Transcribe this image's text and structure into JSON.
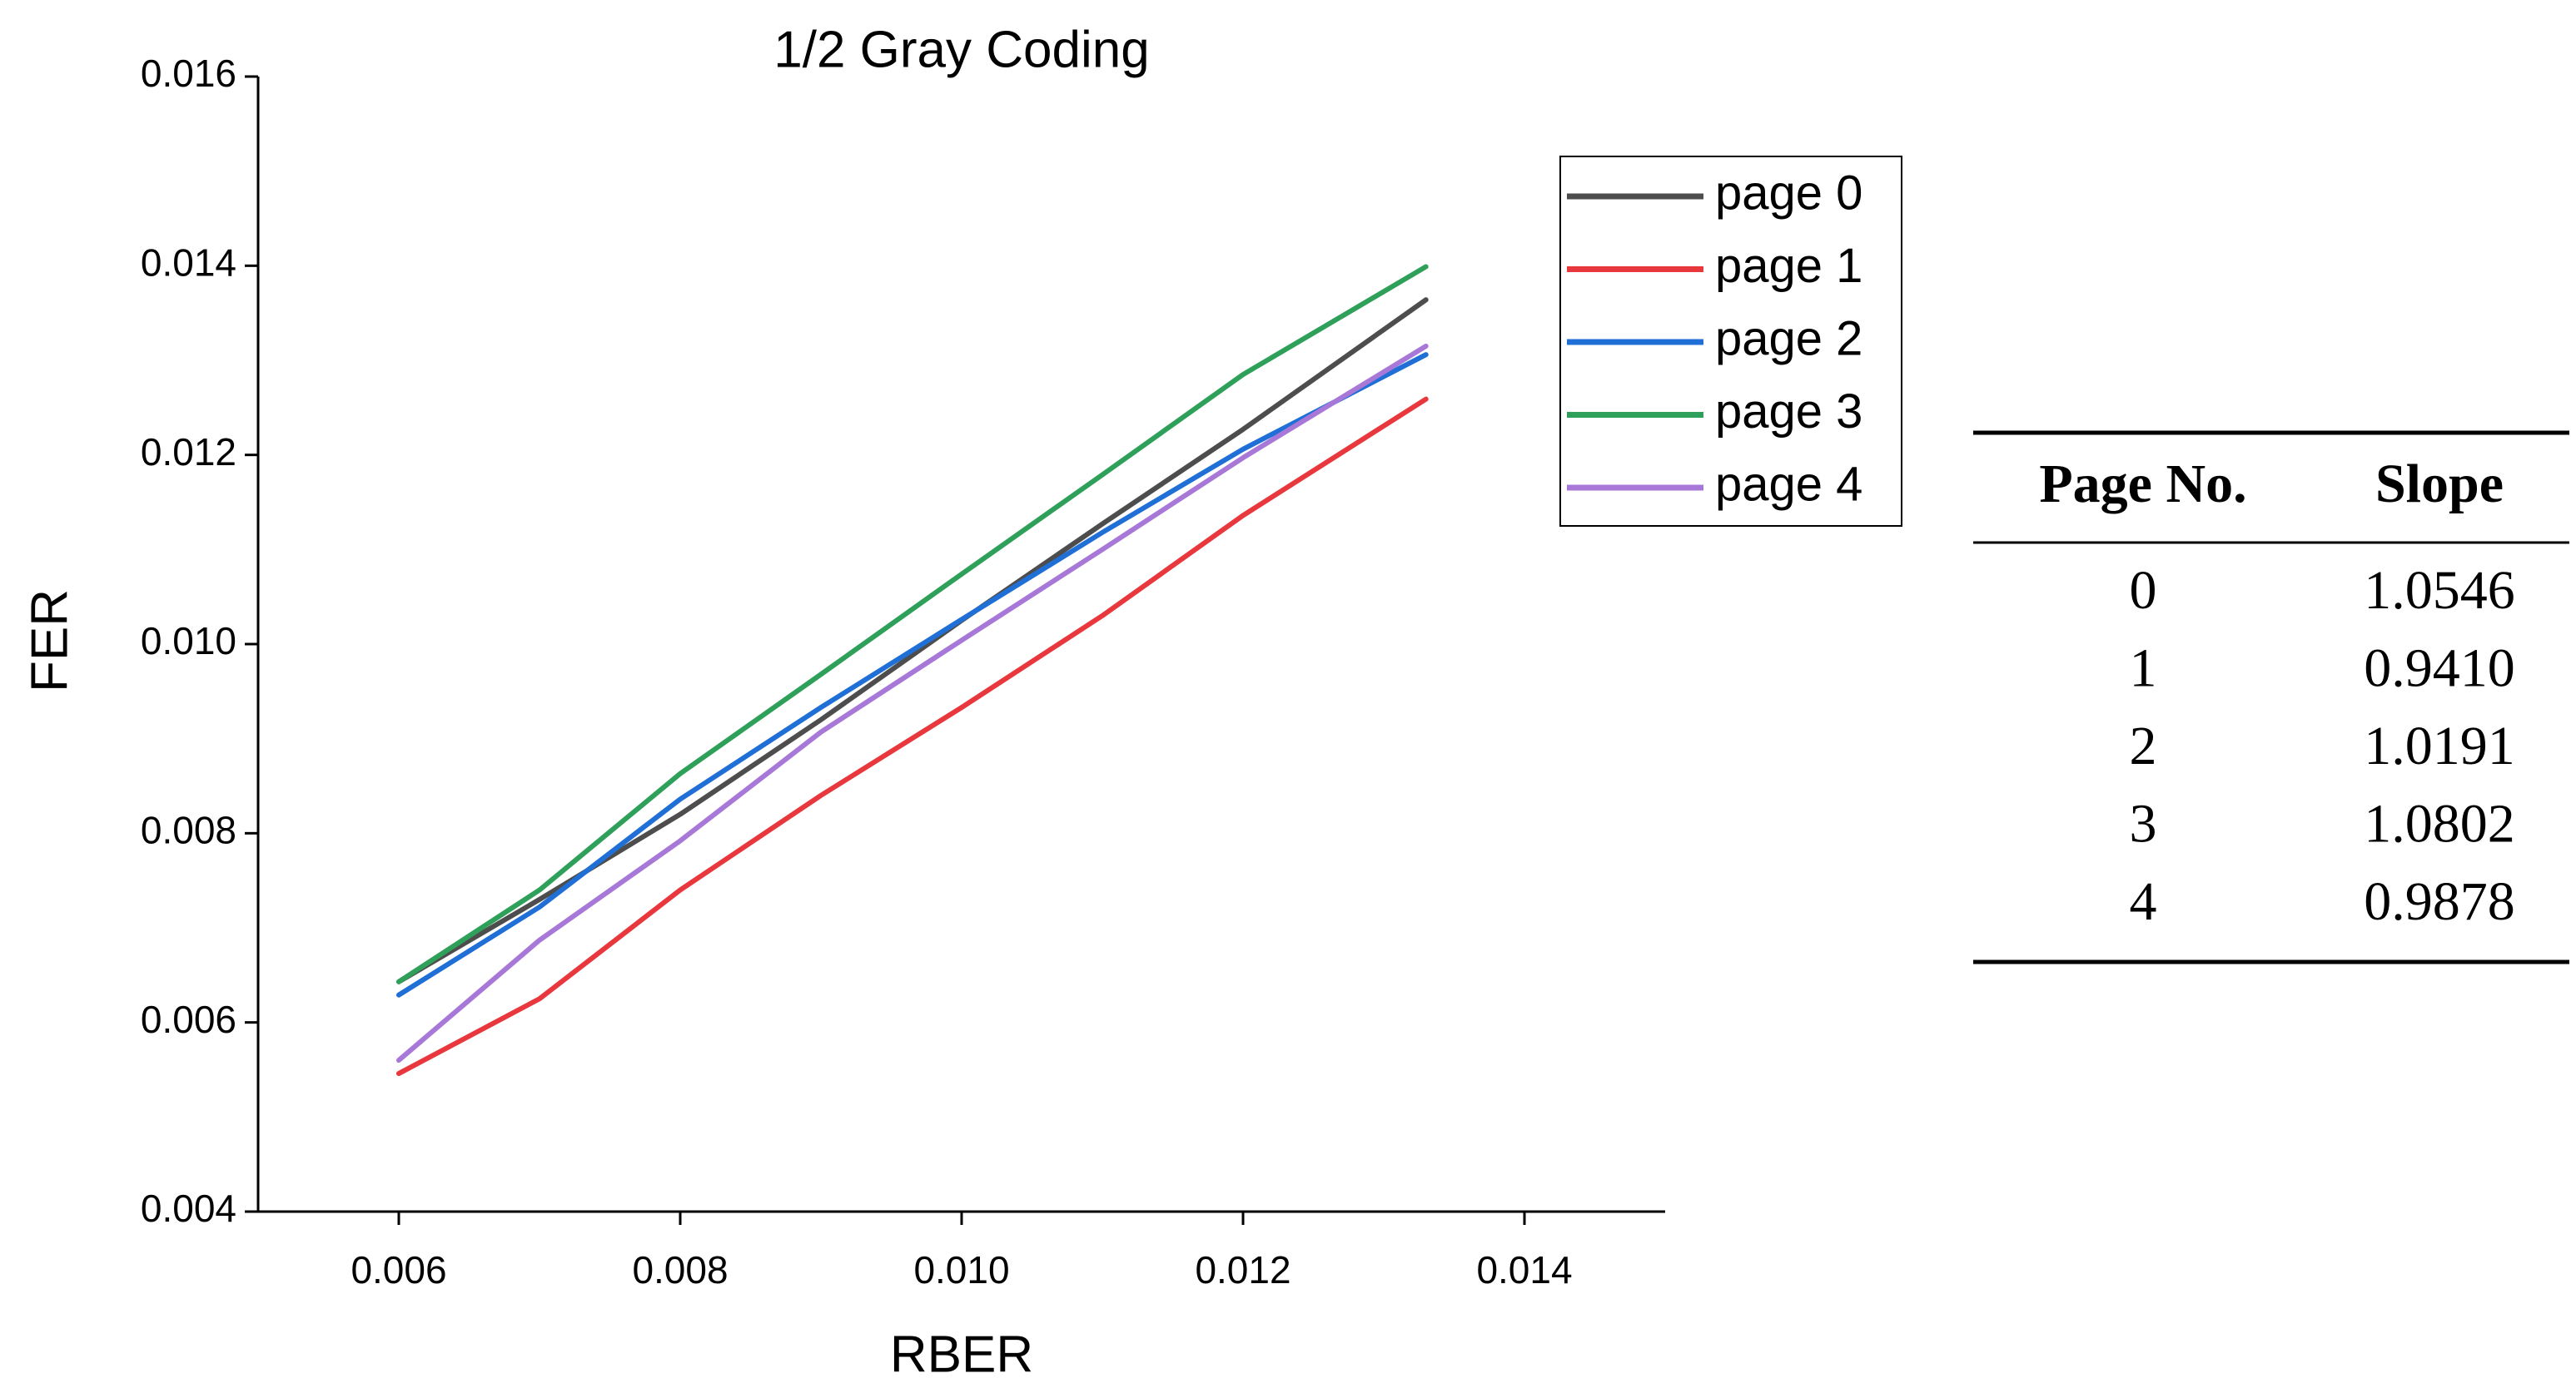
{
  "chart_data": {
    "type": "line",
    "title": "1/2 Gray Coding",
    "x_label": "RBER",
    "y_label": "FER",
    "x": [
      0.006,
      0.007,
      0.008,
      0.009,
      0.01,
      0.011,
      0.012,
      0.0133
    ],
    "series": [
      {
        "name": "page 0",
        "color": "#4d4d4d",
        "values": [
          0.00643,
          0.0073,
          0.0082,
          0.0092,
          0.01025,
          0.01127,
          0.01227,
          0.01364
        ]
      },
      {
        "name": "page 1",
        "color": "#e8383d",
        "values": [
          0.00546,
          0.00625,
          0.0074,
          0.0084,
          0.00933,
          0.0103,
          0.01136,
          0.01259
        ]
      },
      {
        "name": "page 2",
        "color": "#1f6fd6",
        "values": [
          0.00629,
          0.00722,
          0.00836,
          0.00933,
          0.01026,
          0.01118,
          0.01206,
          0.01306
        ]
      },
      {
        "name": "page 3",
        "color": "#2fa05a",
        "values": [
          0.00643,
          0.0074,
          0.00863,
          0.00968,
          0.01074,
          0.01179,
          0.01285,
          0.01399
        ]
      },
      {
        "name": "page 4",
        "color": "#a878d8",
        "values": [
          0.0056,
          0.00687,
          0.00792,
          0.00907,
          0.01004,
          0.011,
          0.01197,
          0.01315
        ]
      }
    ],
    "xlim": [
      0.005,
      0.015
    ],
    "xticks": [
      0.006,
      0.008,
      {
        "value": 0.01,
        "label": "0.010"
      },
      0.012,
      0.014
    ],
    "ylim": [
      0.004,
      0.016
    ],
    "yticks": [
      0.004,
      0.006,
      0.008,
      {
        "value": 0.01,
        "label": "0.010"
      },
      0.012,
      0.014,
      0.016
    ],
    "legend": "upper right",
    "grid": false
  },
  "table": {
    "header": [
      "Page No.",
      "Slope"
    ],
    "rows": [
      [
        "0",
        "1.0546"
      ],
      [
        "1",
        "0.9410"
      ],
      [
        "2",
        "1.0191"
      ],
      [
        "3",
        "1.0802"
      ],
      [
        "4",
        "0.9878"
      ]
    ]
  }
}
